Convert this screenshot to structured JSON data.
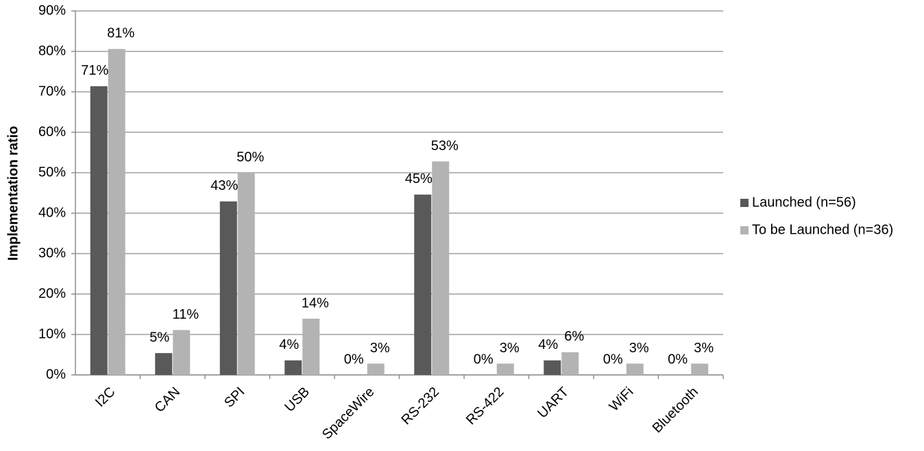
{
  "chart_data": {
    "type": "bar",
    "y_label": "Implementation ratio",
    "categories": [
      "I2C",
      "CAN",
      "SPI",
      "USB",
      "SpaceWire",
      "RS-232",
      "RS-422",
      "UART",
      "WiFi",
      "Bluetooth"
    ],
    "series": [
      {
        "name": "Launched (n=56)",
        "color": "#595959",
        "values": [
          71.4,
          5.4,
          42.9,
          3.6,
          0,
          44.6,
          0,
          3.6,
          0,
          0
        ],
        "value_labels": [
          "71%",
          "5%",
          "43%",
          "4%",
          "0%",
          "45%",
          "0%",
          "4%",
          "0%",
          "0%"
        ]
      },
      {
        "name": "To be Launched (n=36)",
        "color": "#b3b3b3",
        "values": [
          80.6,
          11.1,
          50.0,
          13.9,
          2.8,
          52.8,
          2.8,
          5.6,
          2.8,
          2.8
        ],
        "value_labels": [
          "81%",
          "11%",
          "50%",
          "14%",
          "3%",
          "53%",
          "3%",
          "6%",
          "3%",
          "3%"
        ]
      }
    ],
    "ylim": [
      0,
      90
    ],
    "yticks": [
      {
        "value": 0,
        "label": "0%"
      },
      {
        "value": 10,
        "label": "10%"
      },
      {
        "value": 20,
        "label": "20%"
      },
      {
        "value": 30,
        "label": "30%"
      },
      {
        "value": 40,
        "label": "40%"
      },
      {
        "value": 50,
        "label": "50%"
      },
      {
        "value": 60,
        "label": "60%"
      },
      {
        "value": 70,
        "label": "70%"
      },
      {
        "value": 80,
        "label": "80%"
      },
      {
        "value": 90,
        "label": "90%"
      }
    ],
    "grid": true,
    "legend": "right"
  }
}
